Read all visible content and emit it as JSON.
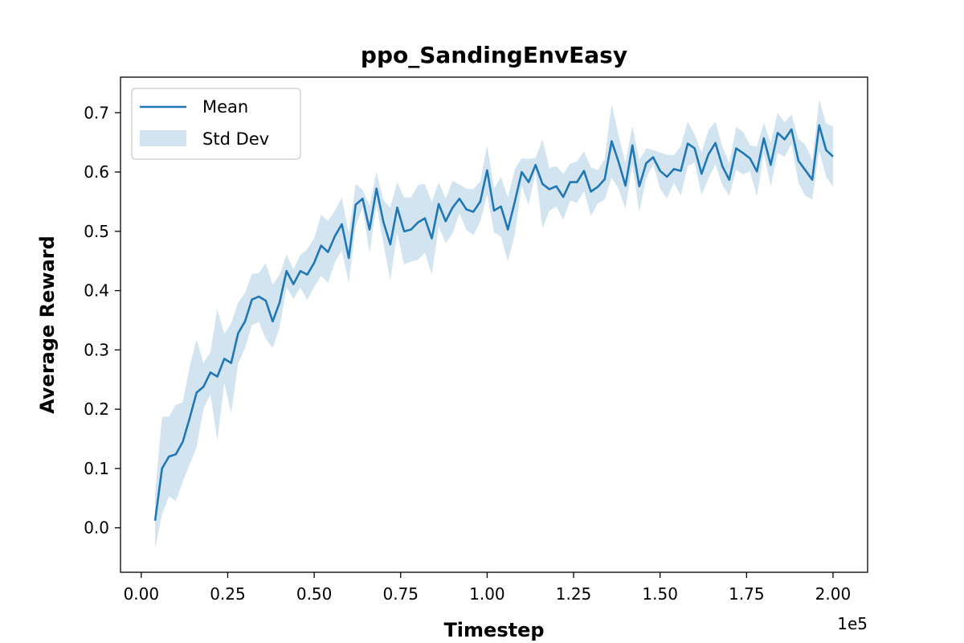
{
  "chart_data": {
    "type": "line",
    "title": "ppo_SandingEnvEasy",
    "xlabel": "Timestep",
    "ylabel": "Average Reward",
    "x_offset_label": "1e5",
    "xlim": [
      -0.06,
      2.1
    ],
    "ylim": [
      -0.075,
      0.76
    ],
    "x_ticks": [
      0.0,
      0.25,
      0.5,
      0.75,
      1.0,
      1.25,
      1.5,
      1.75,
      2.0
    ],
    "x_tick_labels": [
      "0.00",
      "0.25",
      "0.50",
      "0.75",
      "1.00",
      "1.25",
      "1.50",
      "1.75",
      "2.00"
    ],
    "y_ticks": [
      0.0,
      0.1,
      0.2,
      0.3,
      0.4,
      0.5,
      0.6,
      0.7
    ],
    "y_tick_labels": [
      "0.0",
      "0.1",
      "0.2",
      "0.3",
      "0.4",
      "0.5",
      "0.6",
      "0.7"
    ],
    "grid": false,
    "legend": {
      "position": "top-left",
      "entries": [
        "Mean",
        "Std Dev"
      ]
    },
    "colors": {
      "line": "#1f77b4",
      "band": "#1f77b4",
      "band_opacity": 0.2
    },
    "series": [
      {
        "name": "Mean",
        "x": [
          0.04,
          0.06,
          0.08,
          0.1,
          0.12,
          0.14,
          0.16,
          0.18,
          0.2,
          0.22,
          0.24,
          0.26,
          0.28,
          0.3,
          0.32,
          0.34,
          0.36,
          0.38,
          0.4,
          0.42,
          0.44,
          0.46,
          0.48,
          0.5,
          0.52,
          0.54,
          0.56,
          0.58,
          0.6,
          0.62,
          0.64,
          0.66,
          0.68,
          0.7,
          0.72,
          0.74,
          0.76,
          0.78,
          0.8,
          0.82,
          0.84,
          0.86,
          0.88,
          0.9,
          0.92,
          0.94,
          0.96,
          0.98,
          1.0,
          1.02,
          1.04,
          1.06,
          1.08,
          1.1,
          1.12,
          1.14,
          1.16,
          1.18,
          1.2,
          1.22,
          1.24,
          1.26,
          1.28,
          1.3,
          1.32,
          1.34,
          1.36,
          1.38,
          1.4,
          1.42,
          1.44,
          1.46,
          1.48,
          1.5,
          1.52,
          1.54,
          1.56,
          1.58,
          1.6,
          1.62,
          1.64,
          1.66,
          1.68,
          1.7,
          1.72,
          1.74,
          1.76,
          1.78,
          1.8,
          1.82,
          1.84,
          1.86,
          1.88,
          1.9,
          1.92,
          1.94,
          1.96,
          1.98,
          2.0
        ],
        "values": [
          0.012,
          0.1,
          0.12,
          0.124,
          0.145,
          0.185,
          0.228,
          0.238,
          0.262,
          0.255,
          0.285,
          0.278,
          0.328,
          0.348,
          0.385,
          0.39,
          0.383,
          0.348,
          0.38,
          0.433,
          0.411,
          0.433,
          0.427,
          0.447,
          0.476,
          0.465,
          0.492,
          0.512,
          0.455,
          0.545,
          0.555,
          0.503,
          0.572,
          0.516,
          0.478,
          0.54,
          0.5,
          0.503,
          0.515,
          0.522,
          0.488,
          0.546,
          0.517,
          0.54,
          0.555,
          0.537,
          0.533,
          0.55,
          0.603,
          0.535,
          0.542,
          0.503,
          0.55,
          0.6,
          0.583,
          0.612,
          0.58,
          0.571,
          0.576,
          0.558,
          0.583,
          0.583,
          0.602,
          0.567,
          0.575,
          0.588,
          0.652,
          0.617,
          0.577,
          0.645,
          0.576,
          0.615,
          0.625,
          0.602,
          0.592,
          0.605,
          0.602,
          0.648,
          0.64,
          0.597,
          0.63,
          0.649,
          0.61,
          0.587,
          0.64,
          0.632,
          0.623,
          0.601,
          0.657,
          0.612,
          0.666,
          0.655,
          0.672,
          0.619,
          0.603,
          0.587,
          0.679,
          0.637,
          0.626
        ]
      },
      {
        "name": "Std Dev",
        "upper": [
          0.057,
          0.187,
          0.188,
          0.207,
          0.212,
          0.272,
          0.317,
          0.278,
          0.296,
          0.369,
          0.327,
          0.345,
          0.38,
          0.396,
          0.428,
          0.43,
          0.446,
          0.41,
          0.427,
          0.461,
          0.436,
          0.46,
          0.47,
          0.488,
          0.528,
          0.517,
          0.535,
          0.557,
          0.497,
          0.58,
          0.57,
          0.543,
          0.6,
          0.553,
          0.54,
          0.583,
          0.557,
          0.557,
          0.578,
          0.58,
          0.549,
          0.583,
          0.555,
          0.585,
          0.579,
          0.572,
          0.571,
          0.584,
          0.645,
          0.572,
          0.592,
          0.557,
          0.605,
          0.623,
          0.622,
          0.624,
          0.655,
          0.607,
          0.61,
          0.597,
          0.614,
          0.618,
          0.635,
          0.608,
          0.603,
          0.622,
          0.715,
          0.662,
          0.616,
          0.678,
          0.62,
          0.64,
          0.637,
          0.633,
          0.629,
          0.628,
          0.644,
          0.685,
          0.663,
          0.633,
          0.671,
          0.685,
          0.643,
          0.615,
          0.676,
          0.668,
          0.645,
          0.643,
          0.683,
          0.649,
          0.7,
          0.684,
          0.697,
          0.656,
          0.646,
          0.62,
          0.722,
          0.682,
          0.677
        ],
        "lower": [
          -0.035,
          0.023,
          0.053,
          0.045,
          0.078,
          0.107,
          0.136,
          0.201,
          0.226,
          0.147,
          0.244,
          0.193,
          0.277,
          0.303,
          0.342,
          0.347,
          0.319,
          0.303,
          0.338,
          0.405,
          0.386,
          0.405,
          0.384,
          0.406,
          0.425,
          0.413,
          0.448,
          0.468,
          0.413,
          0.509,
          0.54,
          0.463,
          0.544,
          0.48,
          0.417,
          0.497,
          0.444,
          0.449,
          0.452,
          0.464,
          0.427,
          0.508,
          0.48,
          0.496,
          0.531,
          0.502,
          0.494,
          0.516,
          0.562,
          0.498,
          0.491,
          0.449,
          0.495,
          0.577,
          0.544,
          0.6,
          0.505,
          0.535,
          0.542,
          0.519,
          0.552,
          0.548,
          0.568,
          0.526,
          0.547,
          0.554,
          0.59,
          0.572,
          0.538,
          0.612,
          0.532,
          0.59,
          0.613,
          0.572,
          0.555,
          0.582,
          0.56,
          0.61,
          0.616,
          0.561,
          0.589,
          0.613,
          0.578,
          0.56,
          0.604,
          0.596,
          0.601,
          0.559,
          0.631,
          0.576,
          0.632,
          0.626,
          0.647,
          0.582,
          0.56,
          0.554,
          0.636,
          0.592,
          0.575
        ]
      }
    ]
  }
}
